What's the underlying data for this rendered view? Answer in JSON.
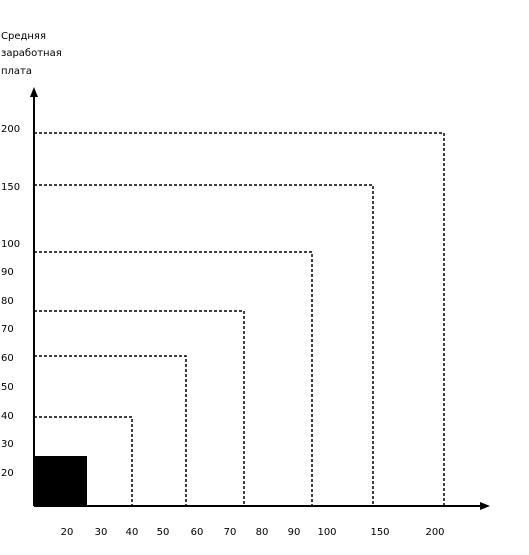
{
  "diagram": {
    "y_axis_label_lines": [
      "Средняя",
      "заработная",
      "плата"
    ],
    "y_ticks": [
      "200",
      "150",
      "100",
      "90",
      "80",
      "70",
      "60",
      "50",
      "40",
      "30",
      "20"
    ],
    "x_ticks": [
      "20",
      "30",
      "40",
      "50",
      "60",
      "70",
      "80",
      "90",
      "100",
      "150",
      "200"
    ],
    "line_color": "#000000",
    "filled_square_color": "#000000",
    "dashed_squares": 6,
    "filled_square_count": 1
  }
}
